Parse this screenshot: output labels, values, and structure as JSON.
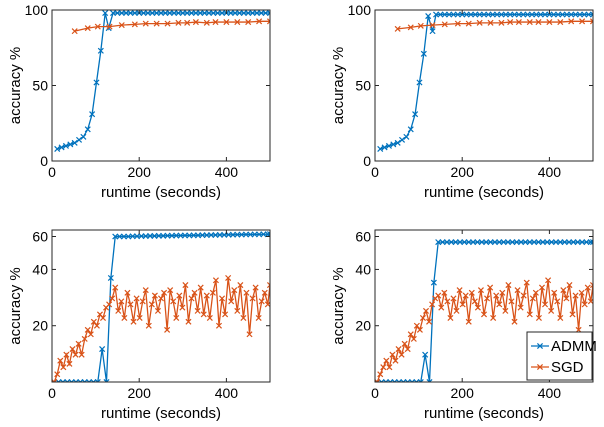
{
  "colors": {
    "admm": "#0072BD",
    "sgd": "#D95319",
    "axis": "#262626",
    "background": "#ffffff"
  },
  "marker": "x",
  "chart_data": [
    {
      "type": "line",
      "xlabel": "runtime (seconds)",
      "ylabel": "accuracy %",
      "xlim": [
        0,
        500
      ],
      "ylim": [
        0,
        100
      ],
      "xticks": [
        0,
        200,
        400
      ],
      "yticks": [
        0,
        50,
        100
      ],
      "grid": false,
      "series": [
        {
          "name": "ADMM",
          "x": [
            12,
            22,
            32,
            42,
            52,
            62,
            72,
            82,
            92,
            102,
            112,
            122,
            130,
            140,
            150,
            160,
            170,
            180,
            190,
            200,
            210,
            220,
            230,
            240,
            250,
            260,
            270,
            280,
            290,
            300,
            310,
            320,
            330,
            340,
            350,
            360,
            370,
            380,
            390,
            400,
            410,
            420,
            430,
            440,
            450,
            460,
            470,
            480,
            490,
            500
          ],
          "y": [
            8,
            9,
            10,
            11,
            12,
            14,
            16,
            21,
            31,
            52,
            73,
            98,
            88,
            98,
            98,
            98,
            98,
            98,
            98,
            98,
            98,
            98,
            98,
            98,
            98,
            98,
            98,
            98,
            98,
            98,
            98,
            98,
            98,
            98,
            98,
            98,
            98,
            98,
            98,
            98,
            98,
            98,
            98,
            98,
            98,
            98,
            98,
            98,
            98,
            98
          ]
        },
        {
          "name": "SGD",
          "x": [
            52,
            82,
            105,
            132,
            160,
            190,
            215,
            240,
            265,
            290,
            310,
            330,
            355,
            375,
            400,
            425,
            450,
            475,
            500
          ],
          "y": [
            86,
            88,
            89,
            89,
            90,
            90.5,
            91,
            91,
            91,
            91.5,
            91.5,
            92,
            91.5,
            92,
            92,
            92,
            92,
            92.5,
            92.5
          ]
        }
      ]
    },
    {
      "type": "line",
      "xlabel": "runtime (seconds)",
      "ylabel": "accuracy %",
      "xlim": [
        0,
        500
      ],
      "ylim": [
        0,
        100
      ],
      "xticks": [
        0,
        200,
        400
      ],
      "yticks": [
        0,
        50,
        100
      ],
      "grid": false,
      "series": [
        {
          "name": "ADMM",
          "x": [
            12,
            22,
            32,
            42,
            52,
            62,
            72,
            82,
            92,
            102,
            112,
            122,
            132,
            140,
            150,
            160,
            170,
            180,
            190,
            200,
            210,
            220,
            230,
            240,
            250,
            260,
            270,
            280,
            290,
            300,
            310,
            320,
            330,
            340,
            350,
            360,
            370,
            380,
            390,
            400,
            410,
            420,
            430,
            440,
            450,
            460,
            470,
            480,
            490,
            500
          ],
          "y": [
            8,
            9,
            10,
            11,
            12,
            14,
            16,
            21,
            31,
            52,
            71,
            96,
            86,
            97,
            97,
            97,
            97,
            97,
            97,
            97,
            97,
            97,
            97,
            97,
            97,
            97,
            97,
            97,
            97,
            97,
            97,
            97,
            97,
            97,
            97,
            97,
            97,
            97,
            97,
            97,
            97,
            97,
            97,
            97,
            97,
            97,
            97,
            97,
            97,
            97
          ]
        },
        {
          "name": "SGD",
          "x": [
            52,
            82,
            105,
            132,
            160,
            190,
            215,
            240,
            265,
            290,
            310,
            330,
            355,
            375,
            400,
            425,
            450,
            475,
            500
          ],
          "y": [
            87.5,
            88.5,
            89.5,
            90,
            90.5,
            91,
            91,
            91.5,
            91.5,
            91.5,
            92,
            92,
            92,
            92,
            92,
            92,
            92.5,
            92.5,
            92.5
          ]
        }
      ]
    },
    {
      "type": "line",
      "xlabel": "runtime (seconds)",
      "ylabel": "accuracy %",
      "xlim": [
        0,
        500
      ],
      "ylim": [
        10,
        65
      ],
      "yscale": "log",
      "xticks": [
        0,
        200,
        400
      ],
      "yticks": [
        20,
        40,
        60
      ],
      "grid": false,
      "series": [
        {
          "name": "ADMM",
          "x": [
            5,
            15,
            25,
            35,
            45,
            55,
            65,
            75,
            85,
            95,
            105,
            115,
            125,
            135,
            145,
            155,
            165,
            175,
            185,
            195,
            205,
            215,
            225,
            235,
            245,
            255,
            265,
            275,
            285,
            295,
            305,
            315,
            325,
            335,
            345,
            355,
            365,
            375,
            385,
            395,
            405,
            415,
            425,
            435,
            445,
            455,
            465,
            475,
            485,
            495,
            500
          ],
          "y": [
            10,
            10,
            10,
            10,
            10,
            10,
            10,
            10,
            10,
            10,
            10,
            15,
            10,
            36,
            60,
            60,
            60,
            60,
            60.2,
            60.2,
            60.3,
            60.3,
            60.4,
            60.4,
            60.5,
            60.5,
            60.6,
            60.6,
            60.7,
            60.7,
            60.8,
            60.8,
            60.9,
            60.9,
            61,
            61,
            61.1,
            61.1,
            61.2,
            61.2,
            61.3,
            61.3,
            61.4,
            61.4,
            61.5,
            61.5,
            61.6,
            61.6,
            61.7,
            61.7,
            61.8
          ]
        },
        {
          "name": "SGD",
          "x": [
            5,
            12,
            19,
            26,
            33,
            40,
            47,
            54,
            61,
            68,
            75,
            82,
            89,
            96,
            103,
            110,
            117,
            124,
            131,
            138,
            145,
            152,
            159,
            166,
            173,
            180,
            187,
            194,
            201,
            208,
            215,
            222,
            229,
            236,
            243,
            250,
            257,
            264,
            271,
            278,
            285,
            292,
            299,
            306,
            313,
            320,
            327,
            334,
            341,
            348,
            355,
            362,
            369,
            376,
            383,
            390,
            397,
            404,
            411,
            418,
            425,
            432,
            439,
            446,
            453,
            460,
            467,
            474,
            481,
            488,
            495,
            500
          ],
          "y": [
            10,
            11,
            13,
            12,
            14,
            12.5,
            15,
            14,
            16,
            14,
            17,
            19,
            18,
            21,
            20,
            23,
            22,
            25,
            26,
            28,
            32,
            24,
            27,
            22,
            30,
            26,
            21,
            28,
            22,
            27,
            31,
            20,
            26,
            29,
            24,
            28,
            30,
            19,
            31,
            27,
            22,
            29,
            25,
            33,
            21,
            28,
            30,
            24,
            32,
            23,
            29,
            22,
            30,
            35,
            20,
            28,
            23,
            36,
            27,
            31,
            24,
            33,
            22,
            30,
            18,
            28,
            32,
            22,
            27,
            30,
            26,
            33
          ]
        }
      ]
    },
    {
      "type": "line",
      "xlabel": "runtime (seconds)",
      "ylabel": "accuracy %",
      "xlim": [
        0,
        500
      ],
      "ylim": [
        10,
        65
      ],
      "yscale": "log",
      "xticks": [
        0,
        200,
        400
      ],
      "yticks": [
        20,
        40,
        60
      ],
      "grid": false,
      "legend": {
        "position": "bottom-right",
        "entries": [
          "ADMM",
          "SGD"
        ]
      },
      "series": [
        {
          "name": "ADMM",
          "x": [
            5,
            15,
            25,
            35,
            45,
            55,
            65,
            75,
            85,
            95,
            105,
            115,
            125,
            135,
            145,
            155,
            165,
            175,
            185,
            195,
            205,
            215,
            225,
            235,
            245,
            255,
            265,
            275,
            285,
            295,
            305,
            315,
            325,
            335,
            345,
            355,
            365,
            375,
            385,
            395,
            405,
            415,
            425,
            435,
            445,
            455,
            465,
            475,
            485,
            495,
            500
          ],
          "y": [
            10,
            10,
            10,
            10,
            10,
            10,
            10,
            10,
            10,
            10,
            10,
            14,
            10,
            34,
            56,
            56,
            56,
            56,
            56,
            56,
            56,
            56,
            56,
            56,
            56,
            56,
            56,
            56,
            56,
            56,
            56,
            56,
            56,
            56,
            56,
            56,
            56,
            56,
            56,
            56,
            56,
            56,
            56,
            56,
            56,
            56,
            56,
            56,
            56,
            56,
            56
          ]
        },
        {
          "name": "SGD",
          "x": [
            5,
            12,
            19,
            26,
            33,
            40,
            47,
            54,
            61,
            68,
            75,
            82,
            89,
            96,
            103,
            110,
            117,
            124,
            131,
            138,
            145,
            152,
            159,
            166,
            173,
            180,
            187,
            194,
            201,
            208,
            215,
            222,
            229,
            236,
            243,
            250,
            257,
            264,
            271,
            278,
            285,
            292,
            299,
            306,
            313,
            320,
            327,
            334,
            341,
            348,
            355,
            362,
            369,
            376,
            383,
            390,
            397,
            404,
            411,
            418,
            425,
            432,
            439,
            446,
            453,
            460,
            467,
            474,
            481,
            488,
            495,
            500
          ],
          "y": [
            10,
            11,
            12,
            13,
            12,
            14,
            13,
            15,
            14,
            16,
            15,
            18,
            17,
            20,
            19,
            22,
            24,
            21,
            26,
            28,
            29,
            25,
            30,
            27,
            22,
            28,
            24,
            31,
            26,
            29,
            21,
            30,
            27,
            25,
            31,
            23,
            28,
            32,
            22,
            29,
            26,
            30,
            24,
            33,
            27,
            21,
            31,
            25,
            29,
            34,
            23,
            28,
            30,
            22,
            32,
            26,
            35,
            24,
            30,
            27,
            22,
            31,
            28,
            33,
            23,
            29,
            19,
            30,
            26,
            32,
            27,
            33
          ]
        }
      ]
    }
  ]
}
